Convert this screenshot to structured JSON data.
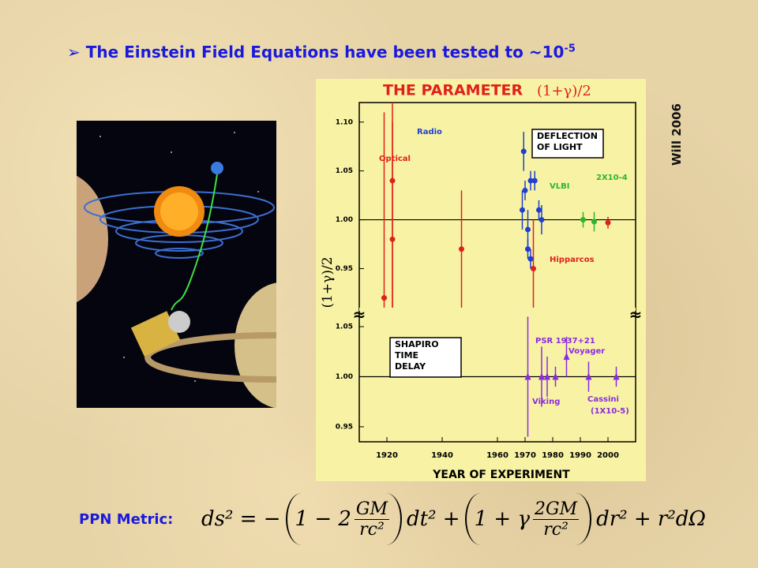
{
  "slide": {
    "title": {
      "text": "The Einstein Field Equations have been tested to ~10",
      "sup": "-5"
    },
    "credit": "Will 2006",
    "ppn_label": "PPN Metric:",
    "equation": {
      "lhs": "ds² = −",
      "t1": "1 − 2",
      "f1n": "GM",
      "f1d": "rc²",
      "m1": "dt² +",
      "t2": "1 + γ",
      "f2n": "2GM",
      "f2d": "rc²",
      "m2": "dr² + r²dΩ"
    }
  },
  "chart_data": {
    "type": "scatter",
    "title": "THE PARAMETER",
    "title_symbol": "(1+γ)/2",
    "x_label": "YEAR OF EXPERIMENT",
    "y_label": "(1+γ)/2",
    "xlim": [
      1910,
      2010
    ],
    "xticks": [
      1920,
      1940,
      1960,
      1970,
      1980,
      1990,
      2000
    ],
    "panels": [
      {
        "title": "DEFLECTION OF LIGHT",
        "ylim": [
          0.91,
          1.12
        ],
        "yticks": [
          0.95,
          {
            "value": 1,
            "label": "1.00"
          },
          1.05,
          {
            "value": 1.1,
            "label": "1.10"
          }
        ],
        "annotation": "2X10-4",
        "series": [
          {
            "name": "Optical",
            "color": "#e0201c",
            "x": [
              1919,
              1922,
              1922,
              1947,
              1973
            ],
            "y": [
              0.92,
              1.04,
              0.98,
              0.97,
              0.95
            ],
            "err": [
              0.19,
              0.14,
              0.12,
              0.06,
              0.05
            ]
          },
          {
            "name": "Radio",
            "color": "#1f3fd0",
            "x": [
              1969,
              1969.5,
              1970,
              1971,
              1971,
              1972,
              1972,
              1973.5,
              1975,
              1976
            ],
            "y": [
              1.01,
              1.07,
              1.03,
              0.99,
              0.97,
              0.96,
              1.04,
              1.04,
              1.01,
              1
            ],
            "err": [
              0.02,
              0.02,
              0.01,
              0.02,
              0.01,
              0.01,
              0.01,
              0.01,
              0.01,
              0.015
            ]
          },
          {
            "name": "VLBI",
            "color": "#2db52d",
            "x": [
              1991,
              1995
            ],
            "y": [
              1,
              0.998
            ],
            "err": [
              0.008,
              0.01
            ]
          },
          {
            "name": "Hipparcos",
            "color": "#e0201c",
            "x": [
              2000
            ],
            "y": [
              0.997
            ],
            "err": [
              0.006
            ]
          }
        ]
      },
      {
        "title": "SHAPIRO TIME DELAY",
        "ylim": [
          0.935,
          1.065
        ],
        "yticks": [
          0.95,
          {
            "value": 1,
            "label": "1.00"
          },
          1.05
        ],
        "annotation": "(1X10-5)",
        "series": [
          {
            "name": "Viking",
            "color": "#8a2be2",
            "x": [
              1971,
              1976,
              1978,
              1981
            ],
            "y": [
              1,
              1,
              1,
              1
            ],
            "err": [
              0.06,
              0.03,
              0.02,
              0.01
            ]
          },
          {
            "name": "PSR 1937+21",
            "color": "#8a2be2",
            "x": [
              1985
            ],
            "y": [
              1.02
            ],
            "err": [
              0.02
            ]
          },
          {
            "name": "Voyager",
            "color": "#8a2be2",
            "x": [
              1993
            ],
            "y": [
              1
            ],
            "err": [
              0.015
            ]
          },
          {
            "name": "Cassini",
            "color": "#8a2be2",
            "x": [
              2003
            ],
            "y": [
              1
            ],
            "err": [
              0.01
            ]
          }
        ]
      }
    ]
  }
}
